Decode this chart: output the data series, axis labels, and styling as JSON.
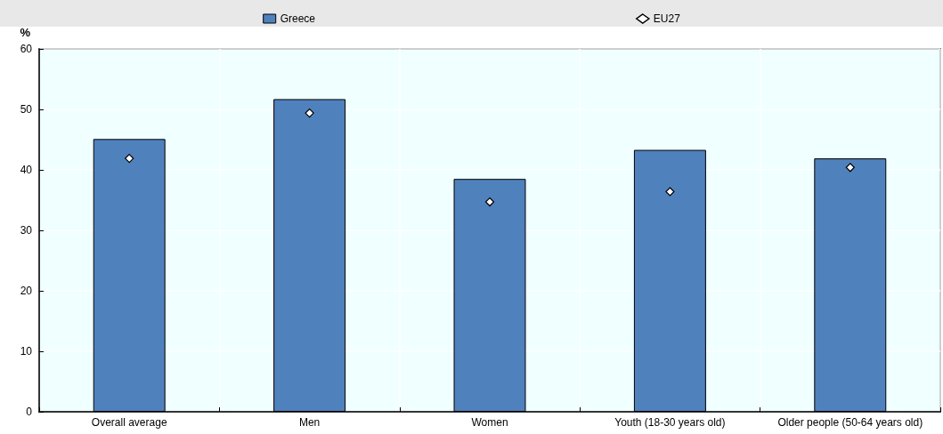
{
  "chart_data": {
    "type": "bar",
    "ylabel": "%",
    "categories": [
      "Overall average",
      "Men",
      "Women",
      "Youth (18-30 years old)",
      "Older people (50-64 years old)"
    ],
    "series": [
      {
        "name": "Greece",
        "color": "#4f81bd",
        "values": [
          45.1,
          51.7,
          38.5,
          43.3,
          41.9
        ]
      },
      {
        "name": "EU27",
        "type": "scatter",
        "color": "#ffffff",
        "marker": "diamond",
        "values": [
          41.9,
          49.4,
          34.7,
          36.4,
          40.4
        ]
      }
    ],
    "ylim": [
      0,
      60
    ],
    "yticks": [
      0,
      10,
      20,
      30,
      40,
      50,
      60
    ],
    "grid": true,
    "legend": "top"
  }
}
